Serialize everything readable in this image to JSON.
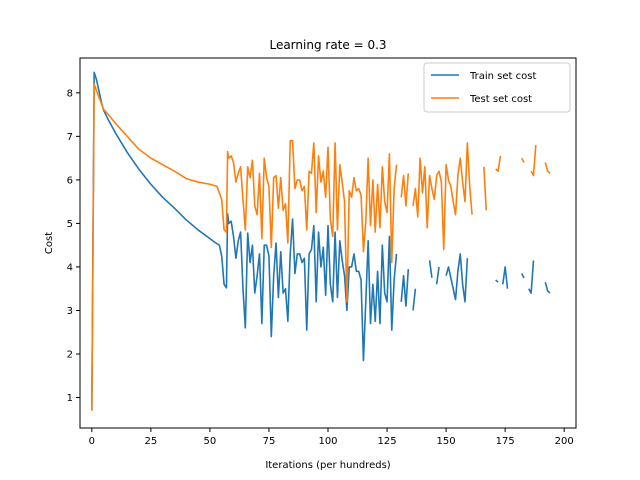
{
  "chart_data": {
    "type": "line",
    "title": "Learning rate = 0.3",
    "xlabel": "Iterations (per hundreds)",
    "ylabel": "Cost",
    "xlim": [
      -5,
      205
    ],
    "ylim": [
      0.3,
      8.8
    ],
    "xticks": [
      0,
      25,
      50,
      75,
      100,
      125,
      150,
      175,
      200
    ],
    "yticks": [
      1,
      2,
      3,
      4,
      5,
      6,
      7,
      8
    ],
    "grid": false,
    "legend_position": "top-right",
    "series": [
      {
        "name": "Train set cost",
        "color": "#1f77b4",
        "points": [
          [
            0,
            0.7
          ],
          [
            1,
            8.47
          ],
          [
            2,
            8.3
          ],
          [
            3,
            8.05
          ],
          [
            4,
            7.8
          ],
          [
            5,
            7.6
          ],
          [
            7,
            7.38
          ],
          [
            10,
            7.08
          ],
          [
            15,
            6.63
          ],
          [
            20,
            6.24
          ],
          [
            25,
            5.9
          ],
          [
            30,
            5.6
          ],
          [
            35,
            5.35
          ],
          [
            40,
            5.08
          ],
          [
            45,
            4.85
          ],
          [
            50,
            4.65
          ],
          [
            52,
            4.57
          ],
          [
            54,
            4.5
          ],
          [
            55,
            4.25
          ],
          [
            56,
            3.6
          ],
          [
            57,
            3.52
          ],
          [
            57.5,
            5.22
          ],
          [
            58,
            5.0
          ],
          [
            59,
            5.05
          ],
          [
            60,
            4.7
          ],
          [
            61,
            4.2
          ],
          [
            62,
            4.6
          ],
          [
            63,
            4.8
          ],
          [
            64,
            3.5
          ],
          [
            65,
            2.6
          ],
          [
            66,
            4.78
          ],
          [
            67,
            4.1
          ],
          [
            68,
            4.5
          ],
          [
            69,
            3.4
          ],
          [
            70,
            3.8
          ],
          [
            71,
            4.3
          ],
          [
            72,
            2.7
          ],
          [
            73,
            4.5
          ],
          [
            74,
            4.5
          ],
          [
            75,
            4.25
          ],
          [
            76,
            2.4
          ],
          [
            77,
            3.8
          ],
          [
            78,
            4.55
          ],
          [
            79,
            3.3
          ],
          [
            80,
            4.35
          ],
          [
            81,
            3.4
          ],
          [
            82,
            3.5
          ],
          [
            83,
            2.75
          ],
          [
            84,
            4.3
          ],
          [
            85,
            5.1
          ],
          [
            86,
            3.85
          ],
          [
            87,
            4.3
          ],
          [
            88,
            4.3
          ],
          [
            89,
            4.1
          ],
          [
            90,
            4.2
          ],
          [
            91,
            2.55
          ],
          [
            92,
            4.3
          ],
          [
            93,
            4.4
          ],
          [
            94,
            4.95
          ],
          [
            95,
            3.2
          ],
          [
            96,
            4.8
          ],
          [
            97,
            4.0
          ],
          [
            98,
            4.45
          ],
          [
            99,
            3.35
          ],
          [
            100,
            4.95
          ],
          [
            101,
            3.6
          ],
          [
            102,
            3.2
          ],
          [
            103,
            4.8
          ],
          [
            104,
            3.3
          ],
          [
            105,
            4.6
          ],
          [
            106,
            4.15
          ],
          [
            107,
            3.8
          ],
          [
            108,
            3.0
          ],
          [
            109,
            4.0
          ],
          [
            110,
            4.0
          ],
          [
            111,
            4.3
          ],
          [
            112,
            3.9
          ],
          [
            113,
            3.9
          ],
          [
            114,
            3.7
          ],
          [
            115,
            1.85
          ],
          [
            116,
            3.2
          ],
          [
            117,
            4.6
          ],
          [
            118,
            2.7
          ],
          [
            119,
            3.6
          ],
          [
            120,
            2.75
          ],
          [
            121,
            3.9
          ],
          [
            122,
            2.7
          ],
          [
            123,
            4.5
          ],
          [
            124,
            3.4
          ],
          [
            125,
            3.2
          ],
          [
            126,
            4.7
          ],
          [
            127,
            2.55
          ],
          [
            128,
            3.7
          ],
          [
            129,
            4.3
          ],
          [
            130,
            null
          ],
          [
            131,
            3.2
          ],
          [
            132,
            3.8
          ],
          [
            133,
            3.1
          ],
          [
            134,
            3.95
          ],
          [
            135,
            null
          ],
          [
            136,
            3.0
          ],
          [
            137,
            3.5
          ],
          [
            138,
            null
          ],
          [
            143,
            4.15
          ],
          [
            144,
            3.75
          ],
          [
            145,
            null
          ],
          [
            146,
            3.6
          ],
          [
            147,
            4.0
          ],
          [
            148,
            null
          ],
          [
            150,
            3.8
          ],
          [
            151,
            4.0
          ],
          [
            152,
            3.75
          ],
          [
            153,
            3.5
          ],
          [
            154,
            3.25
          ],
          [
            155,
            3.9
          ],
          [
            156,
            4.3
          ],
          [
            157,
            3.6
          ],
          [
            158,
            3.2
          ],
          [
            159,
            4.2
          ],
          [
            160,
            null
          ],
          [
            171,
            3.7
          ],
          [
            172,
            3.65
          ],
          [
            173,
            null
          ],
          [
            174,
            3.6
          ],
          [
            175,
            4.0
          ],
          [
            176,
            3.5
          ],
          [
            177,
            null
          ],
          [
            182,
            3.85
          ],
          [
            183,
            3.75
          ],
          [
            184,
            null
          ],
          [
            185,
            3.5
          ],
          [
            186,
            3.4
          ],
          [
            187,
            4.15
          ],
          [
            188,
            null
          ],
          [
            192,
            3.65
          ],
          [
            193,
            3.45
          ],
          [
            194,
            3.4
          ]
        ]
      },
      {
        "name": "Test set cost",
        "color": "#ff7f0e",
        "points": [
          [
            0,
            0.7
          ],
          [
            1,
            8.2
          ],
          [
            2,
            8.05
          ],
          [
            3,
            7.9
          ],
          [
            5,
            7.62
          ],
          [
            7,
            7.5
          ],
          [
            10,
            7.3
          ],
          [
            15,
            7.0
          ],
          [
            20,
            6.7
          ],
          [
            25,
            6.5
          ],
          [
            30,
            6.35
          ],
          [
            35,
            6.2
          ],
          [
            40,
            6.03
          ],
          [
            45,
            5.95
          ],
          [
            50,
            5.9
          ],
          [
            53,
            5.85
          ],
          [
            55,
            5.55
          ],
          [
            56,
            4.85
          ],
          [
            57,
            4.8
          ],
          [
            57.5,
            6.65
          ],
          [
            58,
            6.5
          ],
          [
            59,
            6.55
          ],
          [
            60,
            6.4
          ],
          [
            61,
            5.95
          ],
          [
            62,
            6.15
          ],
          [
            63,
            6.3
          ],
          [
            64,
            5.55
          ],
          [
            65,
            4.85
          ],
          [
            66,
            6.3
          ],
          [
            67,
            6.05
          ],
          [
            68,
            6.45
          ],
          [
            69,
            5.4
          ],
          [
            70,
            5.2
          ],
          [
            71,
            6.15
          ],
          [
            72,
            4.65
          ],
          [
            73,
            6.5
          ],
          [
            74,
            6.05
          ],
          [
            75,
            5.85
          ],
          [
            76,
            4.45
          ],
          [
            77,
            6.05
          ],
          [
            78,
            6.1
          ],
          [
            79,
            5.35
          ],
          [
            80,
            6.05
          ],
          [
            81,
            5.3
          ],
          [
            82,
            5.45
          ],
          [
            83,
            4.55
          ],
          [
            84,
            6.9
          ],
          [
            85,
            6.9
          ],
          [
            86,
            5.8
          ],
          [
            87,
            6.0
          ],
          [
            88,
            6.0
          ],
          [
            89,
            5.75
          ],
          [
            90,
            5.85
          ],
          [
            91,
            4.85
          ],
          [
            92,
            6.2
          ],
          [
            93,
            6.15
          ],
          [
            94,
            6.85
          ],
          [
            95,
            5.25
          ],
          [
            96,
            6.55
          ],
          [
            97,
            5.95
          ],
          [
            98,
            6.2
          ],
          [
            99,
            5.6
          ],
          [
            100,
            6.75
          ],
          [
            101,
            5.1
          ],
          [
            102,
            4.7
          ],
          [
            103,
            6.85
          ],
          [
            104,
            4.85
          ],
          [
            105,
            6.35
          ],
          [
            106,
            5.95
          ],
          [
            107,
            5.5
          ],
          [
            108,
            3.2
          ],
          [
            109,
            5.75
          ],
          [
            110,
            5.6
          ],
          [
            111,
            6.05
          ],
          [
            112,
            5.75
          ],
          [
            113,
            5.8
          ],
          [
            114,
            5.65
          ],
          [
            115,
            4.35
          ],
          [
            116,
            5.05
          ],
          [
            117,
            6.5
          ],
          [
            118,
            4.95
          ],
          [
            119,
            6.0
          ],
          [
            120,
            4.8
          ],
          [
            121,
            5.9
          ],
          [
            122,
            4.9
          ],
          [
            123,
            6.3
          ],
          [
            124,
            5.5
          ],
          [
            125,
            5.25
          ],
          [
            126,
            6.6
          ],
          [
            127,
            4.1
          ],
          [
            128,
            5.8
          ],
          [
            129,
            6.35
          ],
          [
            130,
            null
          ],
          [
            131,
            5.6
          ],
          [
            132,
            6.1
          ],
          [
            133,
            5.4
          ],
          [
            134,
            6.15
          ],
          [
            135,
            null
          ],
          [
            136,
            5.4
          ],
          [
            137,
            5.8
          ],
          [
            138,
            5.15
          ],
          [
            139,
            6.5
          ],
          [
            140,
            5.7
          ],
          [
            141,
            6.3
          ],
          [
            142,
            4.9
          ],
          [
            143,
            6.1
          ],
          [
            144,
            5.8
          ],
          [
            145,
            5.55
          ],
          [
            146,
            6.1
          ],
          [
            147,
            6.2
          ],
          [
            148,
            5.95
          ],
          [
            149,
            4.4
          ],
          [
            150,
            6.35
          ],
          [
            151,
            6.0
          ],
          [
            152,
            5.85
          ],
          [
            153,
            5.5
          ],
          [
            154,
            5.2
          ],
          [
            155,
            6.1
          ],
          [
            156,
            6.5
          ],
          [
            157,
            5.95
          ],
          [
            158,
            5.5
          ],
          [
            159,
            6.85
          ],
          [
            160,
            5.85
          ],
          [
            161,
            5.2
          ],
          [
            162,
            null
          ],
          [
            166,
            6.3
          ],
          [
            167,
            5.3
          ],
          [
            168,
            null
          ],
          [
            171,
            6.25
          ],
          [
            172,
            6.2
          ],
          [
            173,
            6.55
          ],
          [
            174,
            null
          ],
          [
            182,
            6.5
          ],
          [
            183,
            6.4
          ],
          [
            184,
            null
          ],
          [
            186,
            6.2
          ],
          [
            187,
            6.1
          ],
          [
            188,
            6.8
          ],
          [
            189,
            null
          ],
          [
            192,
            6.4
          ],
          [
            193,
            6.2
          ],
          [
            194,
            6.15
          ]
        ]
      }
    ]
  }
}
